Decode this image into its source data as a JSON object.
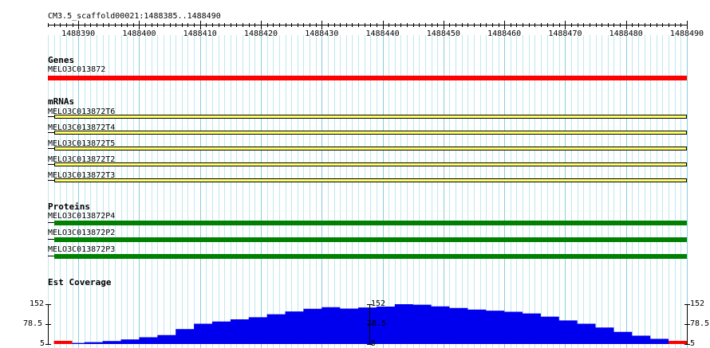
{
  "ruler": {
    "title": "CM3.5_scaffold00021:1488385..1488490",
    "ticks": [
      "1488390",
      "1488400",
      "1488410",
      "1488420",
      "1488430",
      "1488440",
      "1488450",
      "1488460",
      "1488470",
      "1488480",
      "1488490"
    ]
  },
  "tracks": {
    "genes": {
      "title": "Genes",
      "items": [
        {
          "label": "MELO3C013872",
          "color": "#ff0000"
        }
      ]
    },
    "mrnas": {
      "title": "mRNAs",
      "items": [
        {
          "label": "MELO3C013872T6"
        },
        {
          "label": "MELO3C013872T4"
        },
        {
          "label": "MELO3C013872T5"
        },
        {
          "label": "MELO3C013872T2"
        },
        {
          "label": "MELO3C013872T3"
        }
      ],
      "color": "#ffff66"
    },
    "proteins": {
      "title": "Proteins",
      "items": [
        {
          "label": "MELO3C013872P4"
        },
        {
          "label": "MELO3C013872P2"
        },
        {
          "label": "MELO3C013872P3"
        }
      ],
      "color": "#008000"
    },
    "coverage": {
      "title": "Est Coverage",
      "scale": {
        "max": "152",
        "mid": "78.5",
        "min": "5"
      },
      "fill_color": "#0000ee",
      "low_color": "#ff0000",
      "profile": [
        [
          1488386,
          5
        ],
        [
          1488388,
          9
        ],
        [
          1488391,
          12
        ],
        [
          1488394,
          16
        ],
        [
          1488397,
          22
        ],
        [
          1488400,
          30
        ],
        [
          1488403,
          38
        ],
        [
          1488406,
          60
        ],
        [
          1488409,
          80
        ],
        [
          1488412,
          88
        ],
        [
          1488415,
          96
        ],
        [
          1488418,
          104
        ],
        [
          1488421,
          115
        ],
        [
          1488424,
          125
        ],
        [
          1488427,
          135
        ],
        [
          1488430,
          141
        ],
        [
          1488433,
          136
        ],
        [
          1488436,
          140
        ],
        [
          1488439,
          143
        ],
        [
          1488442,
          152
        ],
        [
          1488445,
          150
        ],
        [
          1488448,
          144
        ],
        [
          1488451,
          138
        ],
        [
          1488454,
          132
        ],
        [
          1488457,
          128
        ],
        [
          1488460,
          124
        ],
        [
          1488463,
          118
        ],
        [
          1488466,
          106
        ],
        [
          1488469,
          92
        ],
        [
          1488472,
          80
        ],
        [
          1488475,
          66
        ],
        [
          1488478,
          50
        ],
        [
          1488481,
          36
        ],
        [
          1488484,
          24
        ],
        [
          1488487,
          14
        ],
        [
          1488489,
          9
        ],
        [
          1488490,
          5
        ]
      ]
    }
  }
}
